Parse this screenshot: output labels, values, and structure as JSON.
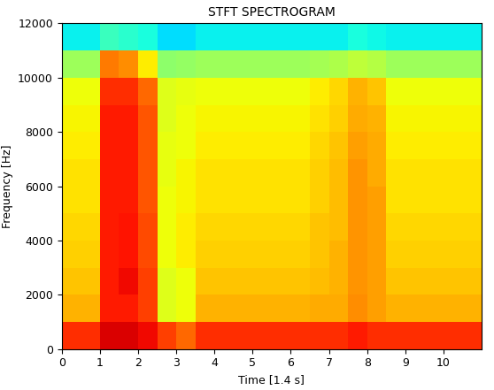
{
  "chart_data": {
    "type": "heatmap",
    "title": "STFT SPECTROGRAM",
    "x_label": "Time [1.4 s]",
    "y_label": "Frequency [Hz]",
    "xlim": [
      0,
      11
    ],
    "xticks": [
      0,
      1,
      2,
      3,
      4,
      5,
      6,
      7,
      8,
      9,
      10
    ],
    "ylim": [
      0,
      12000
    ],
    "yticks": [
      0,
      2000,
      4000,
      6000,
      8000,
      10000,
      12000
    ],
    "x_edges": [
      0,
      0.5,
      1,
      1.5,
      2,
      2.5,
      3,
      3.5,
      4,
      4.5,
      5,
      5.5,
      6,
      6.5,
      7,
      7.5,
      8,
      8.5,
      9,
      9.5,
      10,
      10.5,
      11
    ],
    "y_edges": [
      0,
      1000,
      2000,
      3000,
      4000,
      5000,
      6000,
      7000,
      8000,
      9000,
      10000,
      11000,
      12000
    ],
    "zlim": [
      0,
      100
    ],
    "cells": [
      [
        86,
        86,
        92,
        92,
        90,
        84,
        80,
        86,
        86,
        86,
        86,
        86,
        86,
        86,
        86,
        88,
        86,
        86,
        86,
        86,
        86,
        86
      ],
      [
        72,
        72,
        88,
        88,
        84,
        62,
        64,
        72,
        72,
        72,
        72,
        72,
        72,
        73,
        73,
        76,
        74,
        72,
        72,
        72,
        72,
        72
      ],
      [
        70,
        70,
        88,
        90,
        84,
        62,
        64,
        70,
        70,
        70,
        70,
        70,
        70,
        71,
        72,
        75,
        74,
        70,
        70,
        70,
        70,
        70
      ],
      [
        69,
        69,
        88,
        89,
        83,
        64,
        66,
        69,
        69,
        69,
        69,
        69,
        69,
        70,
        72,
        75,
        74,
        69,
        69,
        69,
        69,
        69
      ],
      [
        68,
        68,
        88,
        89,
        83,
        64,
        66,
        68,
        68,
        68,
        68,
        68,
        68,
        70,
        71,
        75,
        74,
        68,
        68,
        68,
        68,
        68
      ],
      [
        67,
        67,
        88,
        88,
        82,
        64,
        65,
        67,
        67,
        67,
        67,
        67,
        67,
        69,
        71,
        75,
        74,
        67,
        67,
        67,
        67,
        67
      ],
      [
        67,
        67,
        88,
        88,
        82,
        63,
        65,
        67,
        67,
        67,
        67,
        67,
        67,
        69,
        71,
        75,
        73,
        67,
        67,
        67,
        67,
        67
      ],
      [
        66,
        66,
        88,
        88,
        82,
        63,
        64,
        66,
        66,
        66,
        66,
        66,
        66,
        68,
        70,
        74,
        73,
        66,
        66,
        66,
        66,
        66
      ],
      [
        65,
        65,
        88,
        88,
        82,
        62,
        64,
        65,
        65,
        65,
        65,
        65,
        65,
        67,
        69,
        73,
        72,
        65,
        65,
        65,
        65,
        65
      ],
      [
        64,
        64,
        86,
        86,
        80,
        62,
        63,
        64,
        64,
        64,
        64,
        64,
        64,
        66,
        68,
        72,
        70,
        64,
        64,
        64,
        64,
        64
      ],
      [
        54,
        54,
        78,
        76,
        66,
        52,
        53,
        54,
        54,
        54,
        54,
        54,
        54,
        55,
        56,
        58,
        57,
        54,
        54,
        54,
        54,
        54
      ],
      [
        36,
        36,
        42,
        40,
        38,
        34,
        34,
        36,
        36,
        36,
        36,
        36,
        36,
        36,
        36,
        38,
        37,
        36,
        36,
        36,
        36,
        36
      ]
    ]
  }
}
